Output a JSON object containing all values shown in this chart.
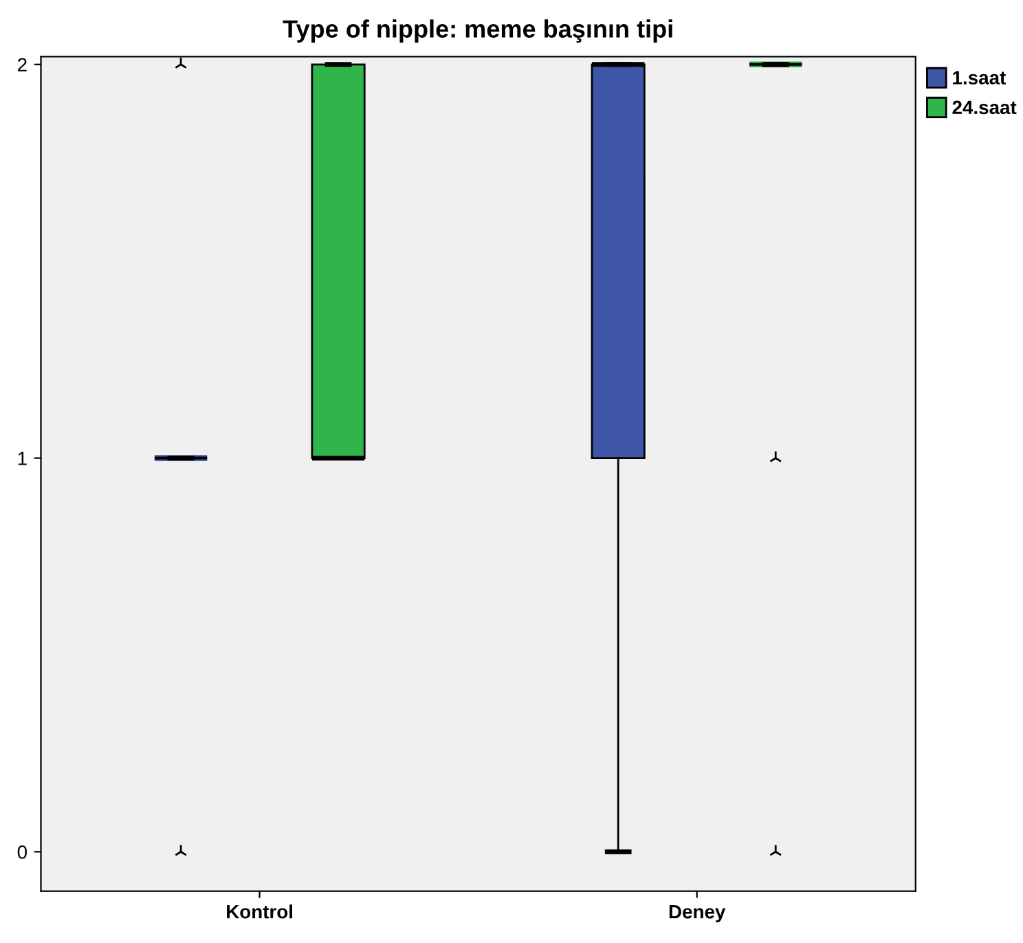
{
  "chart_data": {
    "type": "box",
    "title": "Type of nipple: meme başının tipi",
    "categories": [
      "Kontrol",
      "Deney"
    ],
    "series": [
      {
        "name": "1.saat",
        "color": "#3f55a8",
        "boxes": [
          {
            "low": 1,
            "q1": 1,
            "median": 1,
            "q3": 1,
            "high": 1,
            "outliers": [
              0,
              2
            ]
          },
          {
            "low": 0,
            "q1": 1,
            "median": 2,
            "q3": 2,
            "high": 2
          }
        ]
      },
      {
        "name": "24.saat",
        "color": "#30b54a",
        "boxes": [
          {
            "low": 1,
            "q1": 1,
            "median": 1,
            "q3": 2,
            "high": 2
          },
          {
            "low": 2,
            "q1": 2,
            "median": 2,
            "q3": 2,
            "high": 2,
            "outliers": [
              1,
              0
            ]
          }
        ]
      }
    ],
    "ylim": [
      -0.1,
      2.02
    ],
    "yticks": [
      0,
      1,
      2
    ],
    "grid": false,
    "legend": "top right",
    "marker": "star"
  }
}
